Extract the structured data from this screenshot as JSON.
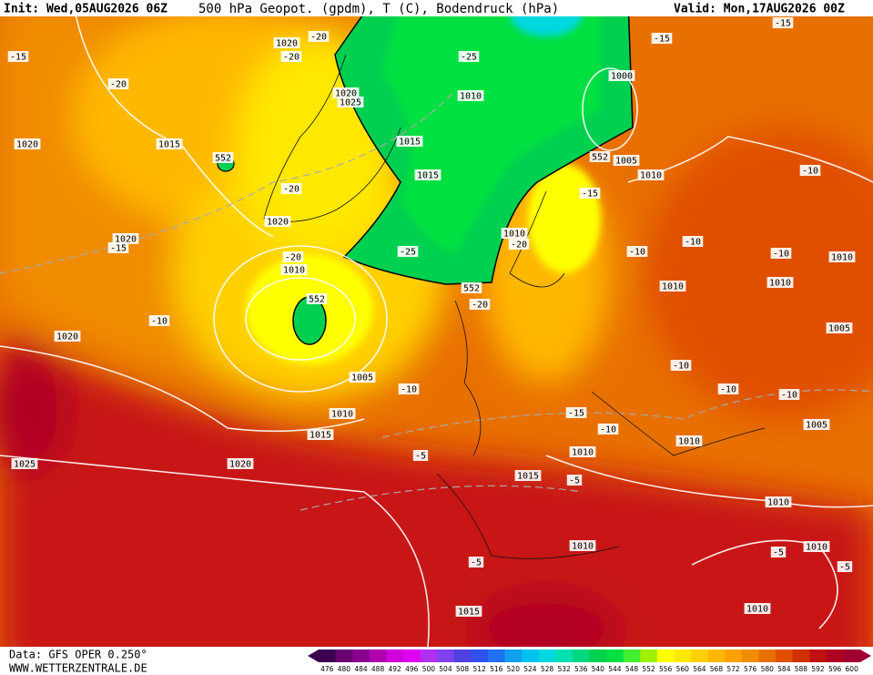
{
  "header": {
    "init": "Init: Wed,05AUG2026 06Z",
    "title": "500 hPa Geopot. (gpdm), T (C), Bodendruck (hPa)",
    "valid": "Valid: Mon,17AUG2026 00Z"
  },
  "footer": {
    "data": "Data: GFS OPER 0.250°",
    "site": "WWW.WETTERZENTRALE.DE"
  },
  "colorbar": {
    "ticks": [
      476,
      480,
      484,
      488,
      492,
      496,
      500,
      504,
      508,
      512,
      516,
      520,
      524,
      528,
      532,
      536,
      540,
      544,
      548,
      552,
      556,
      560,
      564,
      568,
      572,
      576,
      580,
      584,
      588,
      592,
      596,
      600
    ],
    "colors": [
      "#3c0050",
      "#6a0070",
      "#8a0090",
      "#b000b0",
      "#d000d8",
      "#e000f0",
      "#b030f0",
      "#8040f0",
      "#5040e0",
      "#3050f0",
      "#2070f0",
      "#10a0f0",
      "#00c0f0",
      "#00d8e0",
      "#00e0b0",
      "#00d880",
      "#00d050",
      "#00e040",
      "#40f030",
      "#a0f000",
      "#ffff00",
      "#ffe800",
      "#ffd000",
      "#ffb800",
      "#ffa000",
      "#f08c00",
      "#e87000",
      "#e05000",
      "#d03000",
      "#c01010",
      "#b00020",
      "#a00030"
    ]
  },
  "map_labels": [
    "1020",
    "-20",
    "-20",
    "-15",
    "-20",
    "1020",
    "1025",
    "1015",
    "1020",
    "552",
    "-25",
    "1010",
    "1000",
    "-15",
    "-15",
    "1015",
    "1015",
    "552",
    "1005",
    "1010",
    "-15",
    "-20",
    "1020",
    "1020",
    "-15",
    "-25",
    "1010",
    "-20",
    "-20",
    "1010",
    "552",
    "552",
    "-20",
    "-10",
    "-10",
    "-10",
    "1010",
    "-10",
    "1010",
    "1010",
    "1005",
    "-10",
    "1020",
    "-10",
    "-10",
    "-10",
    "1005",
    "-10",
    "1010",
    "1015",
    "-15",
    "-10",
    "1010",
    "1005",
    "1010",
    "-5",
    "1020",
    "1025",
    "1015",
    "-5",
    "1010",
    "1010",
    "-5",
    "1010",
    "-5",
    "-5",
    "1015",
    "1010"
  ]
}
